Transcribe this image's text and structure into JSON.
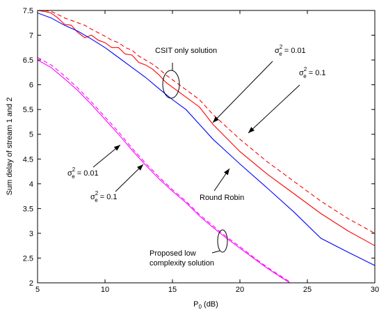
{
  "chart_data": {
    "type": "line",
    "xlabel": "P",
    "xlabel_sub": "0",
    "xlabel_unit": "(dB)",
    "ylabel": "Sum delay of stream 1 and 2",
    "xlim": [
      5,
      30
    ],
    "ylim": [
      2,
      7.5
    ],
    "xticks": [
      5,
      10,
      15,
      20,
      25,
      30
    ],
    "yticks": [
      2,
      2.5,
      3,
      3.5,
      4,
      4.5,
      5,
      5.5,
      6,
      6.5,
      7,
      7.5
    ],
    "xtick_labels": [
      "5",
      "10",
      "15",
      "20",
      "25",
      "30"
    ],
    "ytick_labels": [
      "2",
      "2.5",
      "3",
      "3.5",
      "4",
      "4.5",
      "5",
      "5.5",
      "6",
      "6.5",
      "7",
      "7.5"
    ],
    "grid": false,
    "series": [
      {
        "color": "#ff0000",
        "dash": false,
        "x": [
          5,
          5.5,
          6,
          6.5,
          7,
          7.5,
          8,
          8.5,
          9,
          9.5,
          10,
          10.5,
          11,
          11.5,
          12,
          12.5,
          13,
          13.5,
          14,
          14.5,
          15,
          16,
          17,
          18,
          20,
          22,
          24,
          26,
          28,
          30
        ],
        "y": [
          7.5,
          7.48,
          7.45,
          7.35,
          7.22,
          7.2,
          7.05,
          6.95,
          7.0,
          6.9,
          6.85,
          6.75,
          6.75,
          6.62,
          6.6,
          6.45,
          6.4,
          6.32,
          6.2,
          6.05,
          5.95,
          5.75,
          5.55,
          5.2,
          4.65,
          4.2,
          3.8,
          3.4,
          3.05,
          2.75
        ]
      },
      {
        "color": "#ff0000",
        "dash": true,
        "x": [
          5,
          5.5,
          6,
          6.5,
          7,
          7.5,
          8,
          8.5,
          9,
          9.5,
          10,
          10.5,
          11,
          11.5,
          12,
          12.5,
          13,
          13.5,
          14,
          14.5,
          15,
          16,
          17,
          18,
          20,
          22,
          24,
          26,
          28,
          30
        ],
        "y": [
          7.5,
          7.5,
          7.48,
          7.42,
          7.35,
          7.3,
          7.25,
          7.2,
          7.12,
          7.05,
          6.98,
          6.9,
          6.85,
          6.75,
          6.7,
          6.58,
          6.5,
          6.42,
          6.32,
          6.2,
          6.1,
          5.9,
          5.7,
          5.4,
          4.9,
          4.45,
          4.05,
          3.65,
          3.3,
          3.0
        ]
      },
      {
        "color": "#0000ff",
        "dash": false,
        "x": [
          5,
          6,
          7,
          8,
          9,
          10,
          11,
          12,
          13,
          14,
          15,
          16,
          17,
          18,
          19,
          20,
          22,
          24,
          26,
          28,
          30
        ],
        "y": [
          7.45,
          7.35,
          7.2,
          7.08,
          6.92,
          6.75,
          6.55,
          6.35,
          6.15,
          5.92,
          5.7,
          5.5,
          5.2,
          4.9,
          4.65,
          4.4,
          3.92,
          3.43,
          2.9,
          2.62,
          2.35
        ]
      },
      {
        "color": "#ff00ff",
        "dash": false,
        "x": [
          5,
          6,
          7,
          8,
          9,
          10,
          11,
          12,
          13,
          14,
          15,
          16,
          17,
          18,
          19,
          20,
          21,
          22,
          23,
          24
        ],
        "y": [
          6.5,
          6.35,
          6.12,
          5.88,
          5.6,
          5.3,
          5.0,
          4.68,
          4.38,
          4.1,
          3.85,
          3.62,
          3.35,
          3.12,
          2.9,
          2.7,
          2.5,
          2.3,
          2.12,
          1.95
        ]
      },
      {
        "color": "#ff00ff",
        "dash": true,
        "x": [
          5,
          6,
          7,
          8,
          9,
          10,
          11,
          12,
          13,
          14,
          15,
          16,
          17,
          18,
          19,
          20,
          21,
          22,
          23,
          24
        ],
        "y": [
          6.55,
          6.4,
          6.18,
          5.93,
          5.65,
          5.35,
          5.05,
          4.72,
          4.42,
          4.14,
          3.88,
          3.65,
          3.38,
          3.15,
          2.93,
          2.73,
          2.52,
          2.32,
          2.14,
          1.97
        ]
      }
    ],
    "annotations": {
      "csit_label": "CSIT only solution",
      "round_robin_label": "Round Robin",
      "proposed_label_line1": "Proposed low",
      "proposed_label_line2": "complexity solution",
      "sigma_symbol": "σ",
      "sigma_sup": "2",
      "sigma_sub": "e",
      "value_001": " = 0.01",
      "value_01": " = 0.1"
    }
  }
}
